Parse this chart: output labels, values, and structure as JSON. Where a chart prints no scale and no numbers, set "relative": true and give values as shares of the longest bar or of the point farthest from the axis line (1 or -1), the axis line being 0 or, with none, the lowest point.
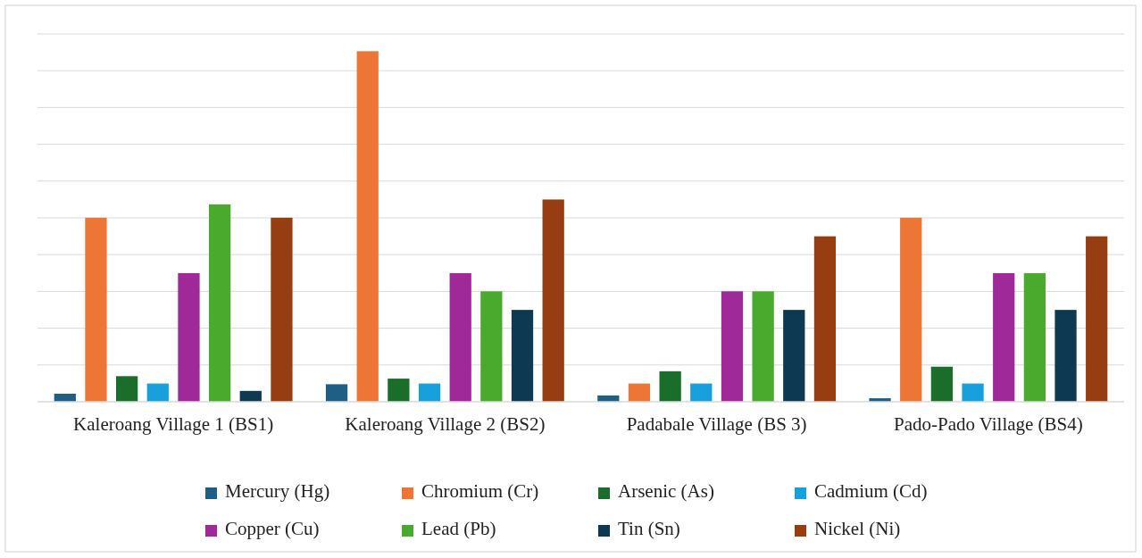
{
  "chart_data": {
    "type": "bar",
    "relative": true,
    "grid": "y",
    "legend": "bottom",
    "categories": [
      "Kaleroang Village 1 (BS1)",
      "Kaleroang Village 2 (BS2)",
      "Padabale Village (BS 3)",
      "Pado-Pado Village (BS4)"
    ],
    "series": [
      {
        "name": "Mercury (Hg)",
        "color": "#1f5f86",
        "values": [
          0.023,
          0.05,
          0.018,
          0.01
        ]
      },
      {
        "name": "Chromium (Cr)",
        "color": "#ed7535",
        "values": [
          0.525,
          1,
          0.052,
          0.525
        ]
      },
      {
        "name": "Arsenic (As)",
        "color": "#1a6e2a",
        "values": [
          0.073,
          0.066,
          0.087,
          0.1
        ]
      },
      {
        "name": "Cadmium (Cd)",
        "color": "#18a0dc",
        "values": [
          0.052,
          0.052,
          0.052,
          0.052
        ]
      },
      {
        "name": "Copper (Cu)",
        "color": "#a0299a",
        "values": [
          0.367,
          0.367,
          0.315,
          0.367
        ]
      },
      {
        "name": "Lead (Pb)",
        "color": "#4aaa2e",
        "values": [
          0.563,
          0.315,
          0.315,
          0.367
        ]
      },
      {
        "name": "Tin (Sn)",
        "color": "#0d3a52",
        "values": [
          0.031,
          0.262,
          0.262,
          0.262
        ]
      },
      {
        "name": "Nickel (Ni)",
        "color": "#963e12",
        "values": [
          0.525,
          0.577,
          0.472,
          0.472
        ]
      }
    ]
  }
}
